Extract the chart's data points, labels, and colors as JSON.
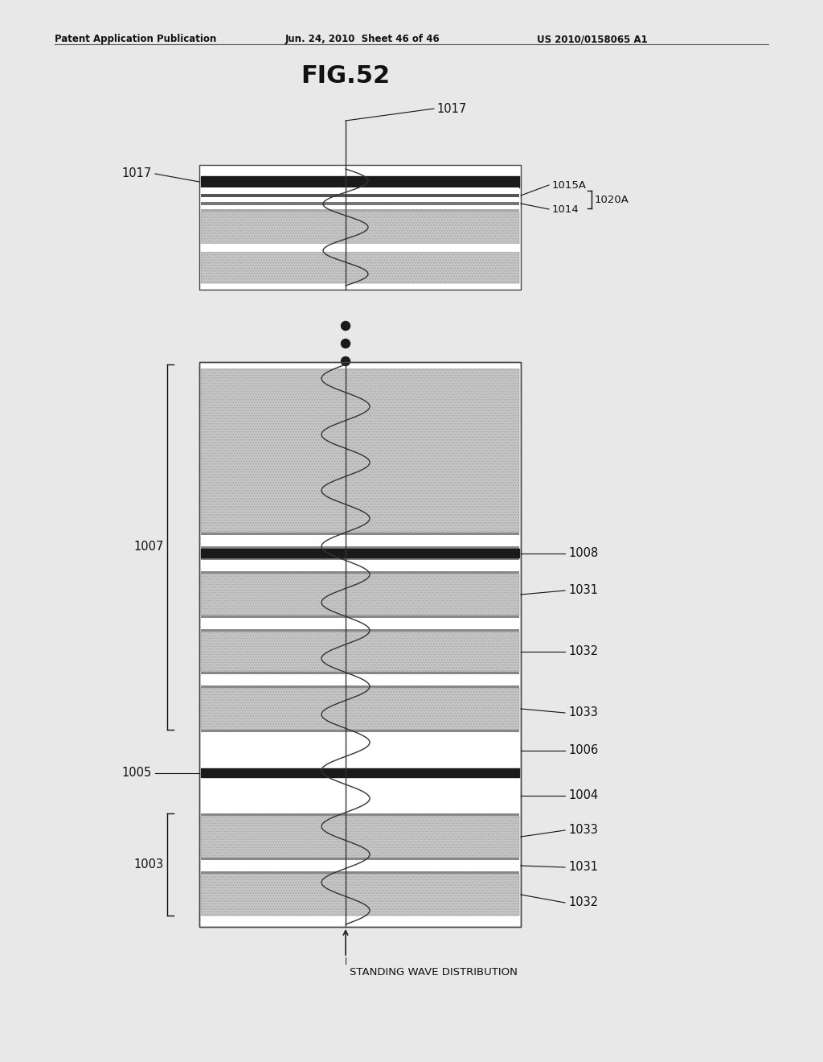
{
  "header_left": "Patent Application Publication",
  "header_center": "Jun. 24, 2010  Sheet 46 of 46",
  "header_right": "US 2010/0158065 A1",
  "title": "FIG.52",
  "bg_color": "#e8e8e8",
  "white": "#ffffff",
  "dark": "#1a1a1a",
  "gray_tex": "#c8c8c8",
  "gray_line": "#888888"
}
